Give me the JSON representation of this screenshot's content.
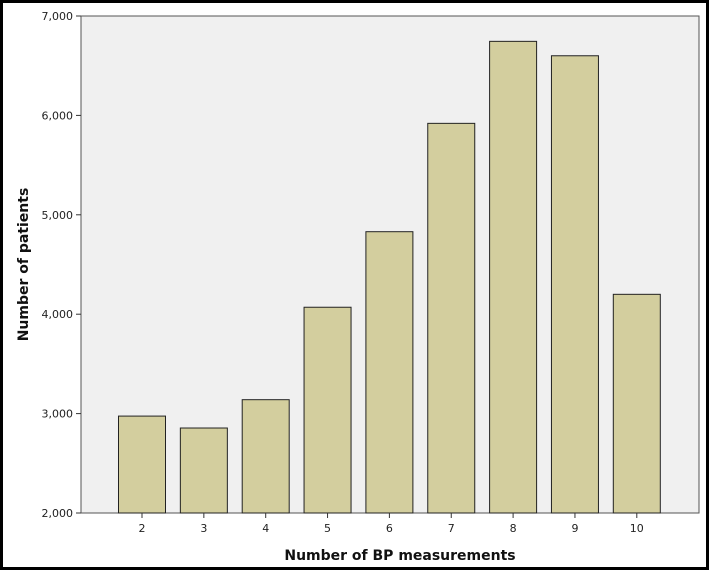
{
  "chart_data": {
    "type": "bar",
    "title": "",
    "xlabel": "Number of BP measurements",
    "ylabel": "Number of patients",
    "categories": [
      "2",
      "3",
      "4",
      "5",
      "6",
      "7",
      "8",
      "9",
      "10"
    ],
    "values": [
      2975,
      2855,
      3140,
      4070,
      4830,
      5920,
      6745,
      6600,
      4200
    ],
    "ylim": [
      2000,
      7000
    ],
    "yticks": [
      2000,
      3000,
      4000,
      5000,
      6000,
      7000
    ],
    "ytick_labels": [
      "2,000",
      "3,000",
      "4,000",
      "5,000",
      "6,000",
      "7,000"
    ],
    "grid": false,
    "colors": {
      "bar_fill": "#d3ce9e",
      "bar_stroke": "#222222",
      "plot_bg": "#f0f0f0"
    }
  }
}
